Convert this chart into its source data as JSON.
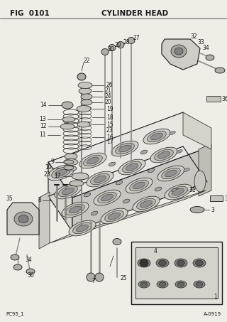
{
  "title_left": "FIG  0101",
  "title_center": "CYLINDER HEAD",
  "footer_left": "PC95_1",
  "footer_right": "A-0919",
  "bg_color": "#f0ede6",
  "line_color": "#1a1a1a",
  "title_fontsize": 7.5,
  "footer_fontsize": 5,
  "label_fontsize": 5.5
}
